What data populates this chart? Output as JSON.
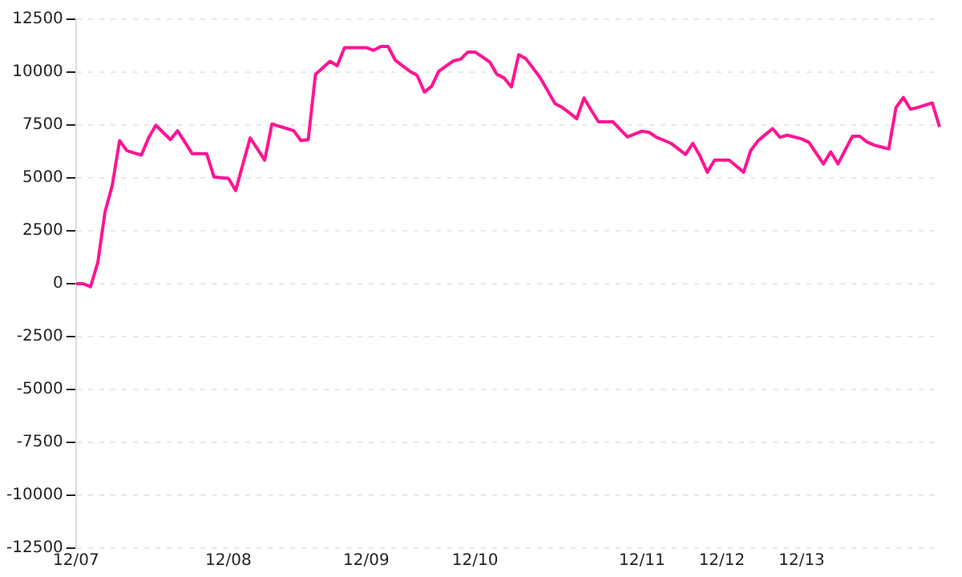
{
  "chart_data": {
    "type": "line",
    "categories": [
      "12/07",
      null,
      null,
      null,
      null,
      null,
      null,
      null,
      null,
      null,
      null,
      null,
      null,
      null,
      null,
      null,
      null,
      null,
      null,
      null,
      null,
      "12/08",
      null,
      null,
      null,
      null,
      null,
      null,
      null,
      null,
      null,
      null,
      null,
      null,
      null,
      null,
      null,
      null,
      null,
      null,
      "12/09",
      null,
      null,
      null,
      null,
      null,
      null,
      null,
      null,
      null,
      null,
      null,
      null,
      null,
      null,
      "12/10",
      null,
      null,
      null,
      null,
      null,
      null,
      null,
      null,
      null,
      null,
      null,
      null,
      null,
      null,
      null,
      null,
      null,
      null,
      null,
      null,
      null,
      null,
      "12/11",
      null,
      null,
      null,
      null,
      null,
      null,
      null,
      null,
      null,
      null,
      "12/12",
      null,
      null,
      null,
      null,
      null,
      null,
      null,
      null,
      null,
      null,
      "12/13",
      null,
      null,
      null,
      null,
      null,
      null,
      null,
      null,
      null,
      null,
      null,
      null,
      null,
      null,
      null,
      null,
      null,
      null,
      null
    ],
    "series": [
      {
        "color": "#ff1493",
        "values": [
          0,
          0,
          -150,
          1000,
          3400,
          4660,
          6760,
          6290,
          6180,
          6080,
          6890,
          7490,
          7150,
          6810,
          7230,
          6690,
          6150,
          6150,
          6150,
          5050,
          5010,
          4980,
          4400,
          5650,
          6890,
          6370,
          5840,
          7550,
          7440,
          7340,
          7230,
          6760,
          6810,
          9900,
          10200,
          10510,
          10300,
          11160,
          11160,
          11160,
          11160,
          11030,
          11210,
          11210,
          10560,
          10300,
          10040,
          9850,
          9060,
          9330,
          10040,
          10290,
          10530,
          10610,
          10950,
          10950,
          10720,
          10480,
          9900,
          9720,
          9300,
          10820,
          10630,
          10180,
          9720,
          9120,
          8510,
          8330,
          8070,
          7800,
          8780,
          8200,
          7650,
          7650,
          7650,
          7290,
          6940,
          7080,
          7210,
          7150,
          6920,
          6780,
          6630,
          6370,
          6110,
          6630,
          6030,
          5270,
          5840,
          5840,
          5840,
          5560,
          5270,
          6310,
          6760,
          7050,
          7330,
          6920,
          7020,
          6930,
          6840,
          6680,
          6170,
          5660,
          6230,
          5660,
          6320,
          6970,
          6970,
          6700,
          6550,
          6460,
          6370,
          8330,
          8800,
          8250,
          8330,
          8440,
          8540,
          7410
        ]
      }
    ],
    "ylim": [
      -12500,
      12500
    ],
    "yticks": [
      -12500,
      -10000,
      -7500,
      -5000,
      -2500,
      0,
      2500,
      5000,
      7500,
      10000,
      12500
    ],
    "grid": "y",
    "legend": false,
    "marker": "none",
    "line_style": "solid"
  }
}
